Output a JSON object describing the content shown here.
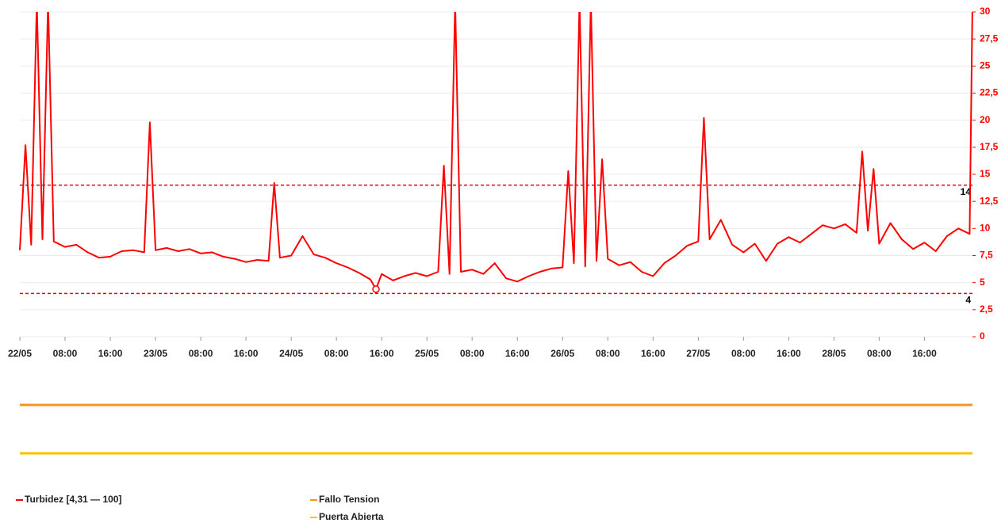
{
  "chart_data": {
    "type": "line",
    "xlim": [
      "22/05 00:00",
      "29/05 00:30"
    ],
    "xticks": [
      {
        "value": "22/05 00:00",
        "label": "22/05"
      },
      {
        "value": "22/05 08:00",
        "label": "08:00"
      },
      {
        "value": "22/05 16:00",
        "label": "16:00"
      },
      {
        "value": "23/05 00:00",
        "label": "23/05"
      },
      {
        "value": "23/05 08:00",
        "label": "08:00"
      },
      {
        "value": "23/05 16:00",
        "label": "16:00"
      },
      {
        "value": "24/05 00:00",
        "label": "24/05"
      },
      {
        "value": "24/05 08:00",
        "label": "08:00"
      },
      {
        "value": "24/05 16:00",
        "label": "16:00"
      },
      {
        "value": "25/05 00:00",
        "label": "25/05"
      },
      {
        "value": "25/05 08:00",
        "label": "08:00"
      },
      {
        "value": "25/05 16:00",
        "label": "16:00"
      },
      {
        "value": "26/05 00:00",
        "label": "26/05"
      },
      {
        "value": "26/05 08:00",
        "label": "08:00"
      },
      {
        "value": "26/05 16:00",
        "label": "16:00"
      },
      {
        "value": "27/05 00:00",
        "label": "27/05"
      },
      {
        "value": "27/05 08:00",
        "label": "08:00"
      },
      {
        "value": "27/05 16:00",
        "label": "16:00"
      },
      {
        "value": "28/05 00:00",
        "label": "28/05"
      },
      {
        "value": "28/05 08:00",
        "label": "08:00"
      },
      {
        "value": "28/05 16:00",
        "label": "16:00"
      }
    ],
    "ylim": [
      0,
      30
    ],
    "yticks": [
      0,
      {
        "value": 2.5,
        "label": "2,5"
      },
      5,
      {
        "value": 7.5,
        "label": "7,5"
      },
      10,
      {
        "value": 12.5,
        "label": "12,5"
      },
      15,
      {
        "value": 17.5,
        "label": "17,5"
      },
      20,
      {
        "value": 22.5,
        "label": "22,5"
      },
      25,
      {
        "value": 27.5,
        "label": "27,5"
      },
      30
    ],
    "grid": true,
    "thresholds": [
      14,
      4
    ],
    "x": [
      "22/05 00:00",
      "22/05 01:00",
      "22/05 02:00",
      "22/05 03:00",
      "22/05 04:00",
      "22/05 05:00",
      "22/05 06:00",
      "22/05 08:00",
      "22/05 10:00",
      "22/05 12:00",
      "22/05 14:00",
      "22/05 16:00",
      "22/05 18:00",
      "22/05 20:00",
      "22/05 22:00",
      "22/05 23:00",
      "23/05 00:00",
      "23/05 02:00",
      "23/05 04:00",
      "23/05 06:00",
      "23/05 08:00",
      "23/05 10:00",
      "23/05 12:00",
      "23/05 14:00",
      "23/05 16:00",
      "23/05 18:00",
      "23/05 20:00",
      "23/05 21:00",
      "23/05 22:00",
      "24/05 00:00",
      "24/05 02:00",
      "24/05 04:00",
      "24/05 06:00",
      "24/05 08:00",
      "24/05 10:00",
      "24/05 12:00",
      "24/05 14:00",
      "24/05 15:00",
      "24/05 16:00",
      "24/05 18:00",
      "24/05 20:00",
      "24/05 22:00",
      "25/05 00:00",
      "25/05 02:00",
      "25/05 03:00",
      "25/05 04:00",
      "25/05 05:00",
      "25/05 06:00",
      "25/05 08:00",
      "25/05 10:00",
      "25/05 12:00",
      "25/05 14:00",
      "25/05 16:00",
      "25/05 18:00",
      "25/05 20:00",
      "25/05 22:00",
      "26/05 00:00",
      "26/05 01:00",
      "26/05 02:00",
      "26/05 03:00",
      "26/05 04:00",
      "26/05 05:00",
      "26/05 06:00",
      "26/05 07:00",
      "26/05 08:00",
      "26/05 10:00",
      "26/05 12:00",
      "26/05 14:00",
      "26/05 16:00",
      "26/05 18:00",
      "26/05 20:00",
      "26/05 22:00",
      "27/05 00:00",
      "27/05 01:00",
      "27/05 02:00",
      "27/05 04:00",
      "27/05 06:00",
      "27/05 08:00",
      "27/05 10:00",
      "27/05 12:00",
      "27/05 14:00",
      "27/05 16:00",
      "27/05 18:00",
      "27/05 20:00",
      "27/05 22:00",
      "28/05 00:00",
      "28/05 02:00",
      "28/05 04:00",
      "28/05 05:00",
      "28/05 06:00",
      "28/05 07:00",
      "28/05 08:00",
      "28/05 10:00",
      "28/05 12:00",
      "28/05 14:00",
      "28/05 16:00",
      "28/05 18:00",
      "28/05 20:00",
      "28/05 22:00",
      "29/05 00:00",
      "29/05 00:30"
    ],
    "series": [
      {
        "name": "Turbidez [4,31 — 100]",
        "color": "#ff0000",
        "values": [
          8,
          17.7,
          8.5,
          31,
          9,
          31,
          8.8,
          8.3,
          8.5,
          7.8,
          7.3,
          7.4,
          7.9,
          8.0,
          7.8,
          19.8,
          8.0,
          8.2,
          7.9,
          8.1,
          7.7,
          7.8,
          7.4,
          7.2,
          6.9,
          7.1,
          7.0,
          14.2,
          7.3,
          7.5,
          9.3,
          7.6,
          7.3,
          6.8,
          6.4,
          5.9,
          5.3,
          4.4,
          5.8,
          5.2,
          5.6,
          5.9,
          5.6,
          6.0,
          15.8,
          5.8,
          31,
          6.0,
          6.2,
          5.8,
          6.8,
          5.4,
          5.1,
          5.6,
          6.0,
          6.3,
          6.4,
          15.3,
          6.8,
          31,
          6.5,
          31,
          7.0,
          16.4,
          7.2,
          6.6,
          6.9,
          6.0,
          5.6,
          6.8,
          7.5,
          8.4,
          8.8,
          20.2,
          9.0,
          10.8,
          8.5,
          7.8,
          8.6,
          7.0,
          8.6,
          9.2,
          8.7,
          9.5,
          10.3,
          10.0,
          10.4,
          9.6,
          17.1,
          9.8,
          15.5,
          8.6,
          10.5,
          9.0,
          8.1,
          8.7,
          7.9,
          9.3,
          10.0,
          9.5,
          31
        ]
      },
      {
        "name": "Fallo Tension",
        "color": "#f7941d"
      },
      {
        "name": "Puerta Abierta",
        "color": "#ffc000"
      }
    ],
    "min_marker": {
      "x": "24/05 15:00",
      "value": 4.4
    }
  }
}
